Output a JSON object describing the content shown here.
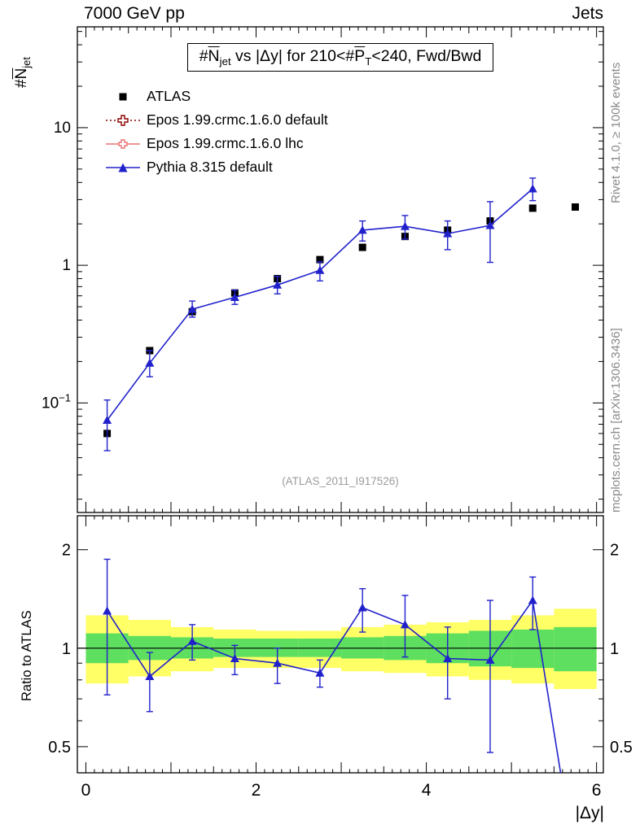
{
  "header": {
    "left": "7000 GeV pp",
    "right": "Jets"
  },
  "title_parts": {
    "a": "#",
    "b": "N",
    "c": "jet",
    "d": " vs |Δy| for 210<#",
    "e": "P",
    "f": "T",
    "g": "<240, Fwd/Bwd"
  },
  "axis_labels": {
    "y_main_parts": {
      "hash": "#",
      "N": "N",
      "sub": "jet"
    },
    "y_ratio": "Ratio to ATLAS",
    "x": "|Δy|"
  },
  "side_notes": {
    "right_top": "Rivet 4.1.0, ≥ 100k events",
    "right_bottom": "mcplots.cern.ch [arXiv:1306.3436]"
  },
  "watermark": "(ATLAS_2011_I917526)",
  "legend": {
    "items": [
      {
        "label": "ATLAS",
        "marker": "filled-square",
        "color": "#000000"
      },
      {
        "label": "Epos 1.99.crmc.1.6.0 default",
        "marker": "open-cross",
        "color": "#8b0000",
        "line": "dotted"
      },
      {
        "label": "Epos 1.99.crmc.1.6.0 lhc",
        "marker": "open-cross",
        "color": "#e87272",
        "line": "solid"
      },
      {
        "label": "Pythia 8.315 default",
        "marker": "filled-triangle",
        "color": "#2121cc",
        "line": "solid"
      }
    ]
  },
  "colors": {
    "atlas": "#000000",
    "epos_default": "#8b0000",
    "epos_lhc": "#e87272",
    "pythia": "#2121cc",
    "band_yellow": "#ffff66",
    "band_green": "#5fdf5f",
    "frame": "#000000",
    "side_text": "#8a8a8a",
    "watermark": "#9c9c9c"
  },
  "chart_data": [
    {
      "type": "line",
      "panel": "main",
      "title": "#Njet vs |Δy| for 210<#PT<240, Fwd/Bwd",
      "xlabel": "|Δy|",
      "ylabel": "#Njet",
      "yscale": "log",
      "xlim": [
        -0.1,
        6.08
      ],
      "ylim": [
        0.016,
        54
      ],
      "majors": [
        0.1,
        1,
        10
      ],
      "grid": false,
      "legend_position": "top-left",
      "xtick_labels": [
        {
          "v": 0,
          "t": "0"
        },
        {
          "v": 2,
          "t": "2"
        },
        {
          "v": 4,
          "t": "4"
        },
        {
          "v": 6,
          "t": "6"
        }
      ],
      "ytick_labels": [
        {
          "v": 10,
          "t": "10"
        },
        {
          "v": 1,
          "t": "1"
        },
        {
          "v": 0.1,
          "t": "10",
          "sup": "−1"
        }
      ],
      "series": [
        {
          "key": "atlas",
          "name": "ATLAS",
          "marker": "square",
          "color": "#000000",
          "line": false,
          "x": [
            0.25,
            0.75,
            1.25,
            1.75,
            2.25,
            2.75,
            3.25,
            3.75,
            4.25,
            4.75,
            5.25,
            5.75
          ],
          "y": [
            0.06,
            0.24,
            0.46,
            0.63,
            0.8,
            1.1,
            1.35,
            1.62,
            1.8,
            2.1,
            2.6,
            2.65
          ]
        },
        {
          "key": "epos-default",
          "name": "Epos 1.99.crmc.1.6.0 default",
          "marker": "open-cross",
          "color": "#8b0000",
          "line": true,
          "x": [],
          "y": []
        },
        {
          "key": "epos-lhc",
          "name": "Epos 1.99.crmc.1.6.0 lhc",
          "marker": "open-cross",
          "color": "#e87272",
          "line": true,
          "x": [],
          "y": []
        },
        {
          "key": "pythia",
          "name": "Pythia 8.315 default",
          "marker": "triangle",
          "color": "#2121cc",
          "line": true,
          "x": [
            0.25,
            0.75,
            1.25,
            1.75,
            2.25,
            2.75,
            3.25,
            3.75,
            4.25,
            4.75,
            5.25
          ],
          "y": [
            0.075,
            0.195,
            0.48,
            0.585,
            0.72,
            0.92,
            1.8,
            1.92,
            1.7,
            1.95,
            3.6
          ],
          "ylo": [
            0.045,
            0.155,
            0.42,
            0.52,
            0.62,
            0.77,
            1.5,
            1.55,
            1.3,
            1.05,
            2.95
          ],
          "yhi": [
            0.105,
            0.24,
            0.55,
            0.66,
            0.83,
            1.06,
            2.1,
            2.3,
            2.1,
            2.9,
            4.3
          ]
        }
      ]
    },
    {
      "type": "ratio",
      "panel": "ratio",
      "ylabel": "Ratio to ATLAS",
      "xlabel": "|Δy|",
      "yscale": "log",
      "ylim": [
        0.416,
        2.54
      ],
      "majors": [
        0.5,
        1,
        2
      ],
      "ref_line": 1,
      "ytick_labels": [
        {
          "v": 2,
          "t": "2"
        },
        {
          "v": 1,
          "t": "1"
        },
        {
          "v": 0.5,
          "t": "0.5"
        }
      ],
      "bands": {
        "edges": [
          0,
          0.5,
          1,
          1.5,
          2,
          2.5,
          3,
          3.5,
          4,
          4.5,
          5,
          5.5,
          6
        ],
        "yellow_lo": [
          0.78,
          0.82,
          0.85,
          0.87,
          0.87,
          0.87,
          0.85,
          0.84,
          0.82,
          0.8,
          0.78,
          0.75
        ],
        "yellow_hi": [
          1.26,
          1.22,
          1.16,
          1.14,
          1.13,
          1.13,
          1.16,
          1.18,
          1.2,
          1.22,
          1.26,
          1.32
        ],
        "green_lo": [
          0.9,
          0.92,
          0.93,
          0.94,
          0.94,
          0.94,
          0.93,
          0.92,
          0.9,
          0.88,
          0.87,
          0.85
        ],
        "green_hi": [
          1.11,
          1.09,
          1.08,
          1.07,
          1.07,
          1.07,
          1.08,
          1.09,
          1.11,
          1.13,
          1.14,
          1.16
        ]
      },
      "series": [
        {
          "key": "pythia",
          "name": "Pythia 8.315 default",
          "marker": "triangle",
          "color": "#2121cc",
          "line": true,
          "x": [
            0.25,
            0.75,
            1.25,
            1.75,
            2.25,
            2.75,
            3.25,
            3.75,
            4.25,
            4.75,
            5.25
          ],
          "y": [
            1.3,
            0.82,
            1.05,
            0.93,
            0.9,
            0.84,
            1.33,
            1.18,
            0.93,
            0.92,
            1.4
          ],
          "ylo": [
            0.72,
            0.64,
            0.92,
            0.83,
            0.78,
            0.76,
            1.12,
            0.94,
            0.7,
            0.48,
            1.14
          ],
          "yhi": [
            1.87,
            0.97,
            1.18,
            1.02,
            1.0,
            0.92,
            1.52,
            1.45,
            1.16,
            1.4,
            1.65
          ],
          "tail": {
            "x": 5.75,
            "y": 0.22
          }
        }
      ]
    }
  ]
}
